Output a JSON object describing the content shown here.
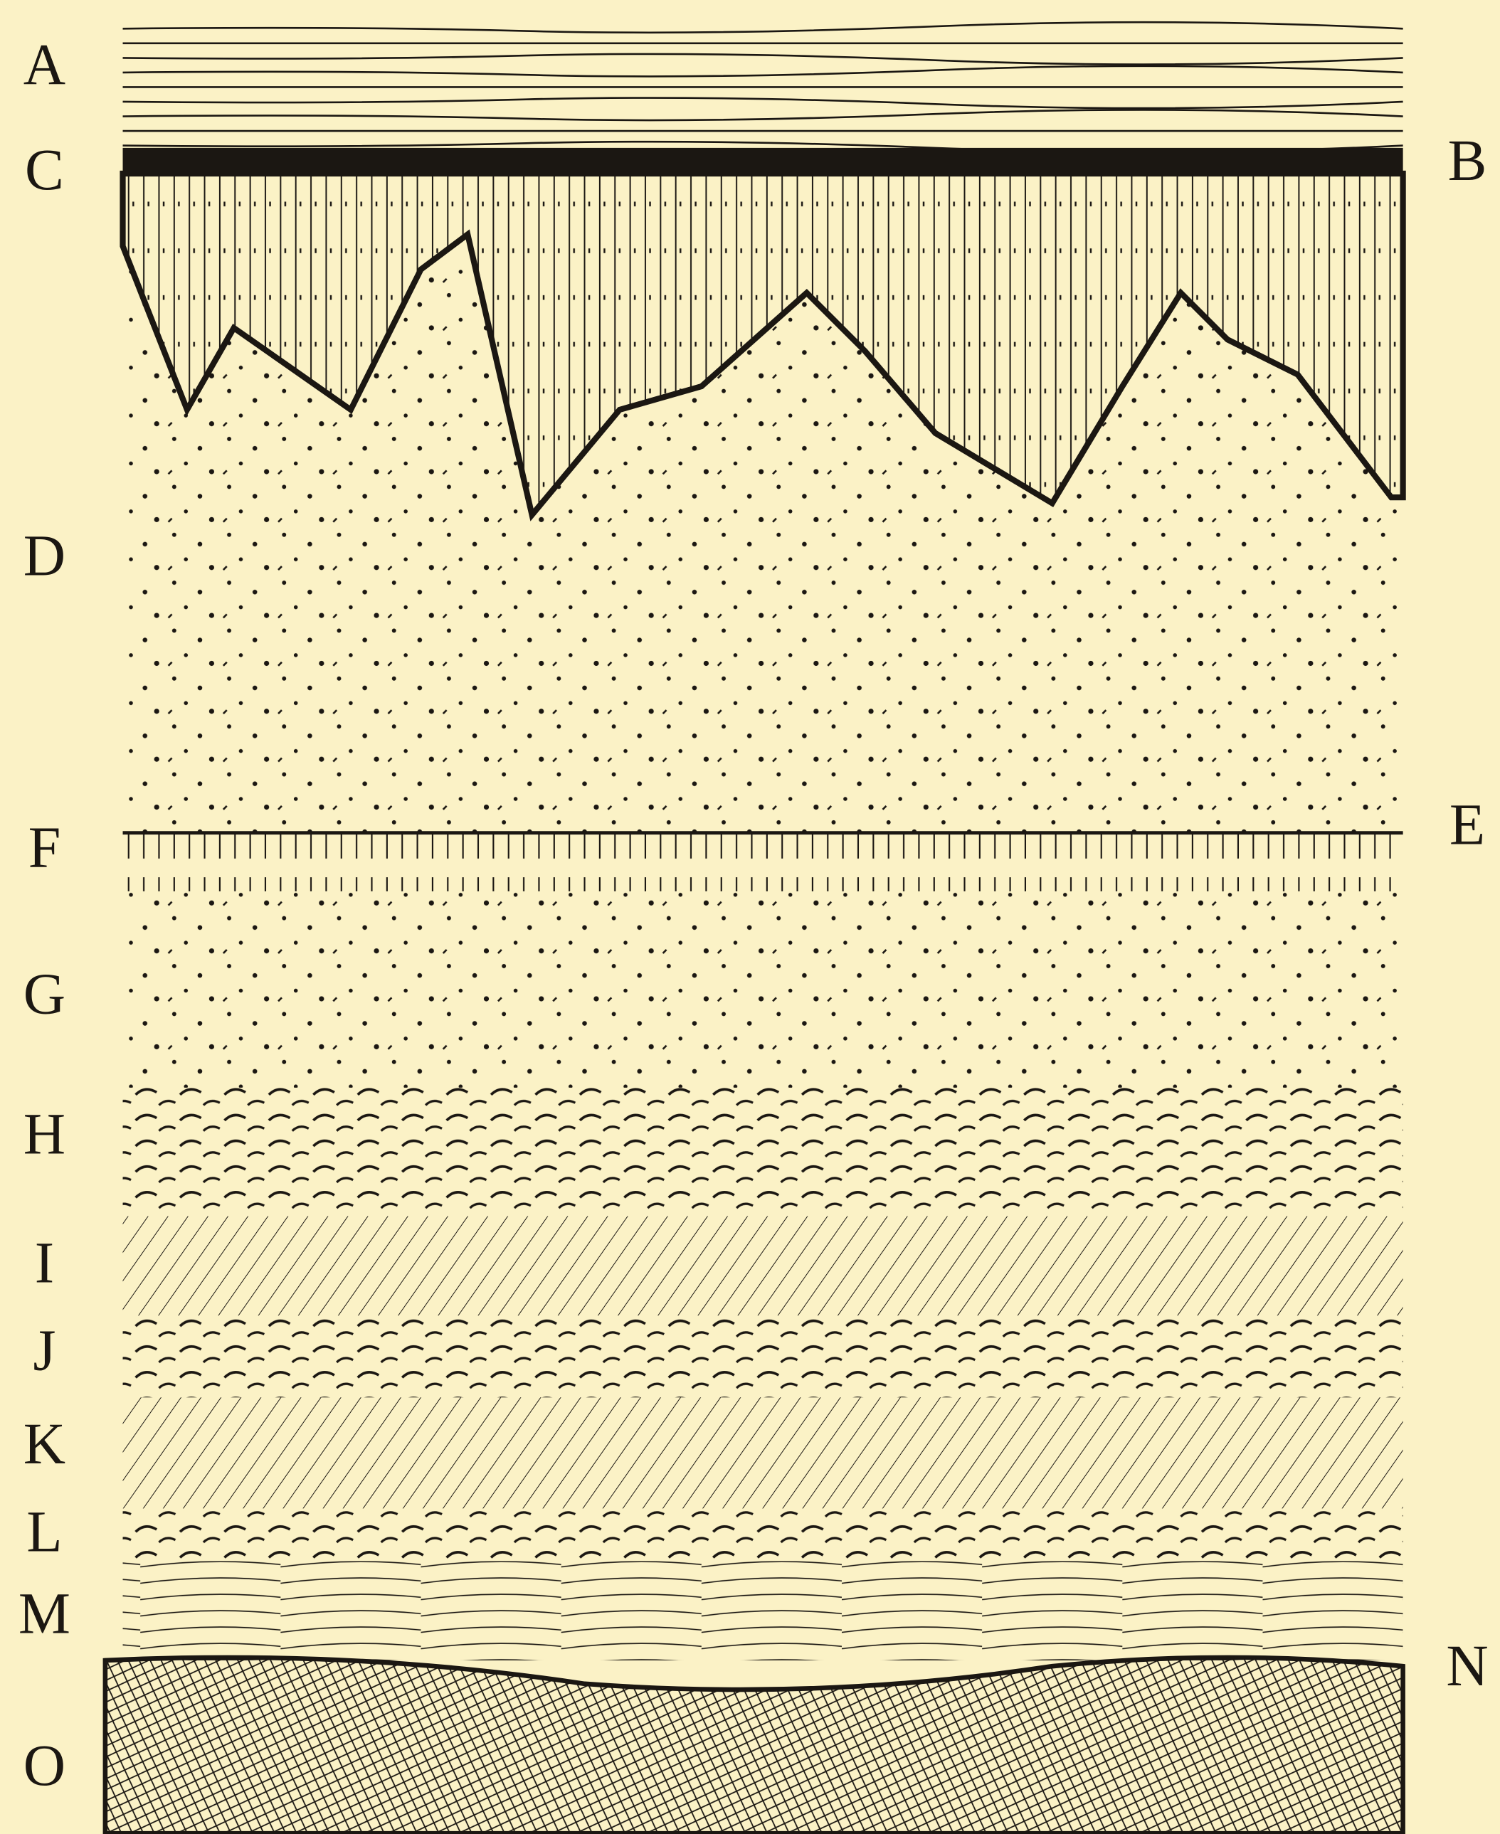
{
  "labels": {
    "left": [
      "A",
      "C",
      "D",
      "F",
      "G",
      "H",
      "I",
      "J",
      "K",
      "L",
      "M",
      "O"
    ],
    "right": [
      "B",
      "E",
      "N"
    ]
  }
}
